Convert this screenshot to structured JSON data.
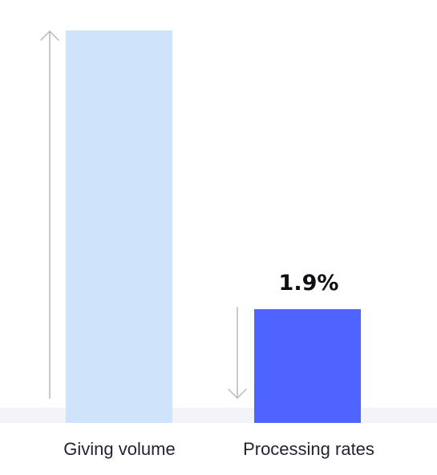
{
  "chart_data": {
    "type": "bar",
    "categories": [
      "Giving volume",
      "Processing rates"
    ],
    "values": [
      null,
      1.9
    ],
    "data_labels": [
      "",
      "1.9%"
    ],
    "arrows": [
      "up",
      "down"
    ],
    "colors": {
      "bar_giving_volume": "#cfe3fb",
      "bar_processing_rates": "#4f63ff",
      "baseline_band": "#f3f4f7",
      "arrow": "#b9b9b9"
    },
    "axes": {
      "x_axis": false,
      "y_axis": false
    },
    "grid": false,
    "legend": "none"
  }
}
